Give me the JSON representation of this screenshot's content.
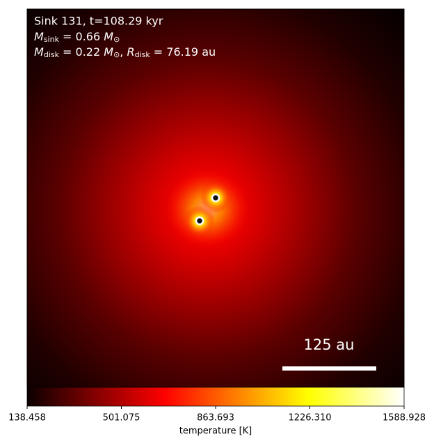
{
  "chart_data": {
    "type": "image",
    "title": "Sink 131, t=108.29 kyr",
    "annotations": [
      {
        "symbol": "M",
        "sub": "sink",
        "text": " = 0.66 ",
        "unit": "M",
        "unit_sub": "⊙"
      },
      {
        "symbol": "M",
        "sub": "disk",
        "text": " = 0.22 ",
        "unit": "M",
        "unit_sub": "⊙",
        "sep": ", ",
        "symbol2": "R",
        "sub2": "disk",
        "text2": " = 76.19 au"
      }
    ],
    "scale_bar_label": "125 au",
    "cmap": "hot",
    "colorbar": {
      "label": "temperature [K]",
      "clim": [
        138.458,
        1588.928
      ],
      "ticks": [
        138.458,
        501.075,
        863.693,
        {
          "value": 1226.31,
          "label": "1226.310"
        },
        1588.928
      ]
    }
  }
}
